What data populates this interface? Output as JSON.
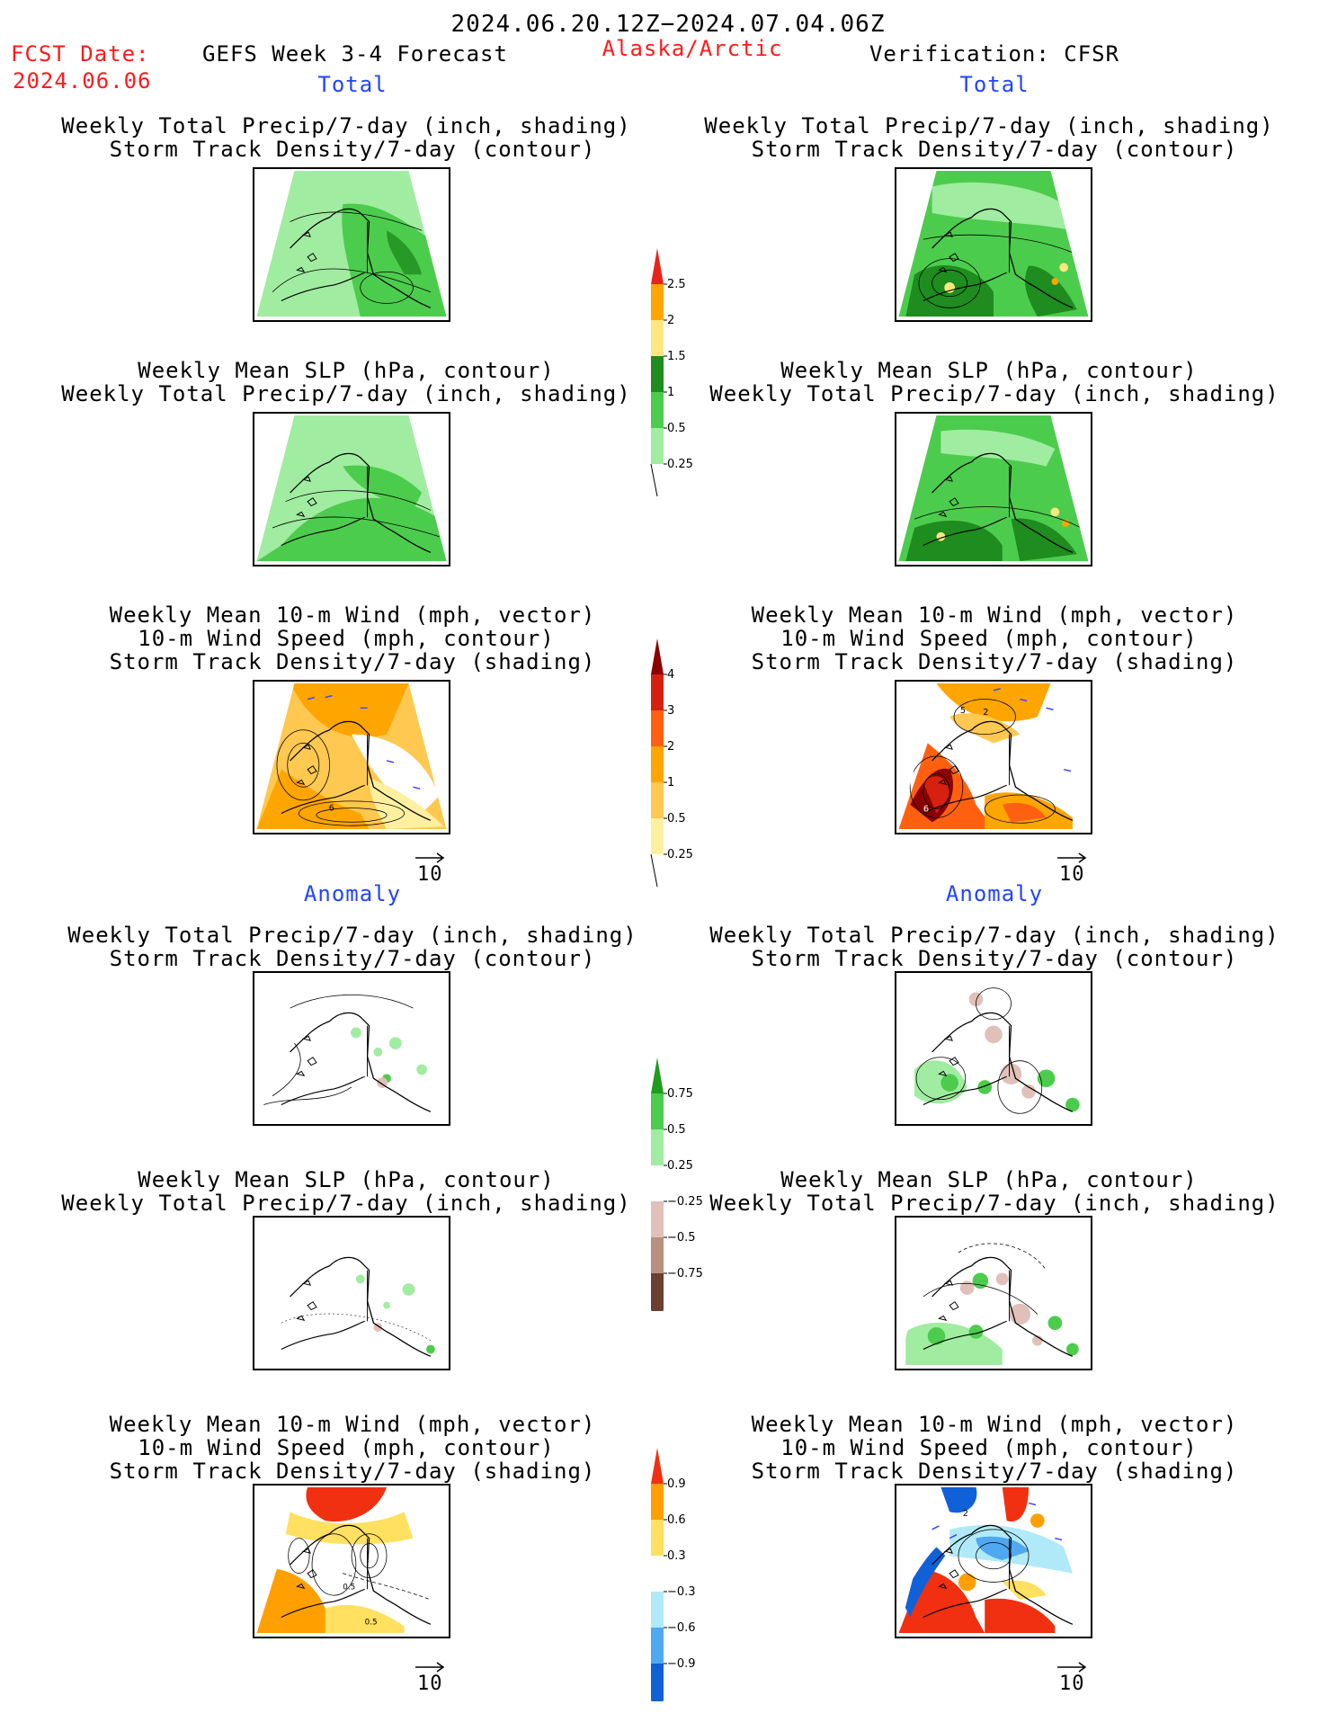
{
  "header": {
    "period": "2024.06.20.12Z−2024.07.04.06Z",
    "fcst_label": "FCST Date:",
    "fcst_date": "2024.06.06",
    "model": "GEFS Week 3-4 Forecast",
    "region": "Alaska/Arctic",
    "verification": "Verification: CFSR"
  },
  "sections": {
    "total": "Total",
    "anomaly": "Anomaly"
  },
  "titles": {
    "precip_shading": "Weekly Total Precip/7-day (inch, shading)",
    "storm_contour": "Storm Track Density/7-day (contour)",
    "slp_contour": "Weekly Mean SLP (hPa, contour)",
    "wind_vector": "Weekly Mean 10-m Wind (mph, vector)",
    "wind_speed_contour": "10-m Wind Speed (mph, contour)",
    "storm_shading": "Storm Track Density/7-day (shading)"
  },
  "vector_ref": "10",
  "colorbars": {
    "precip_total": {
      "labels": [
        "2.5",
        "2",
        "1.5",
        "1",
        "0.5",
        "0.25"
      ],
      "colors": [
        "#e8241a",
        "#ffa500",
        "#ffe680",
        "#1e8c1e",
        "#4ccc4c",
        "#a0eca0"
      ]
    },
    "storm_total": {
      "labels": [
        "4",
        "3",
        "2",
        "1",
        "0.5",
        "0.25"
      ],
      "colors": [
        "#8b0000",
        "#d62010",
        "#ff6010",
        "#ffa500",
        "#ffc850",
        "#fff0a0"
      ]
    },
    "precip_anom": {
      "labels": [
        "0.75",
        "0.5",
        "0.25",
        "−0.25",
        "−0.5",
        "−0.75"
      ],
      "colors": [
        "#1e9c1e",
        "#4ccc4c",
        "#a0eca0",
        "#ffffff",
        "#e0c0b8",
        "#b89080",
        "#6b4030"
      ]
    },
    "storm_anom": {
      "labels": [
        "0.9",
        "0.6",
        "0.3",
        "−0.3",
        "−0.6",
        "−0.9"
      ],
      "colors": [
        "#f03010",
        "#ffa000",
        "#ffe060",
        "#ffffff",
        "#b0eaf8",
        "#50a8f0",
        "#1060d8"
      ]
    }
  },
  "map_labels": {
    "gefs_total_wind": "6",
    "cfsr_total_wind_a": "5",
    "cfsr_total_wind_b": "2",
    "cfsr_total_wind_c": "6",
    "gefs_anom_wind_a": "0.5",
    "gefs_anom_wind_b": "0.5",
    "cfsr_anom_wind": "2"
  }
}
